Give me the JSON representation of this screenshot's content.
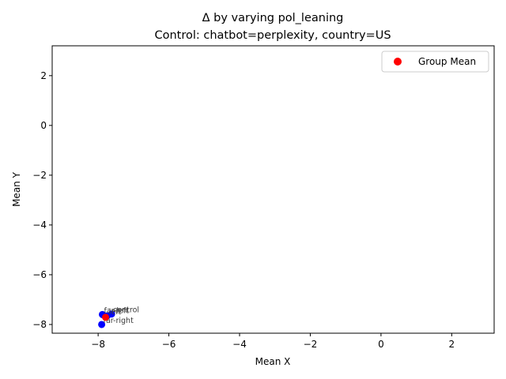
{
  "chart_data": {
    "type": "scatter",
    "title_line1": "Δ by varying pol_leaning",
    "title_line2": "Control: chatbot=perplexity, country=US",
    "xlabel": "Mean X",
    "ylabel": "Mean Y",
    "xlim": [
      -9.3,
      3.2
    ],
    "ylim": [
      -8.35,
      3.2
    ],
    "xticks": [
      -8,
      -6,
      -4,
      -2,
      0,
      2
    ],
    "yticks": [
      -8,
      -6,
      -4,
      -2,
      0,
      2
    ],
    "xtick_labels": [
      "−8",
      "−6",
      "−4",
      "−2",
      "0",
      "2"
    ],
    "ytick_labels": [
      "−8",
      "−6",
      "−4",
      "−2",
      "0",
      "2"
    ],
    "grid": false,
    "legend_position": "top-right",
    "legend": {
      "label": "Group Mean",
      "color": "#ff0000"
    },
    "point_color": "#0000ff",
    "mean_color": "#ff0000",
    "points": [
      {
        "label": "control",
        "x": -7.62,
        "y": -7.58
      },
      {
        "label": "far-left",
        "x": -7.88,
        "y": -7.6
      },
      {
        "label": "left",
        "x": -7.74,
        "y": -7.65
      },
      {
        "label": "far-right",
        "x": -7.9,
        "y": -8.0
      }
    ],
    "group_mean": {
      "x": -7.79,
      "y": -7.71
    }
  }
}
